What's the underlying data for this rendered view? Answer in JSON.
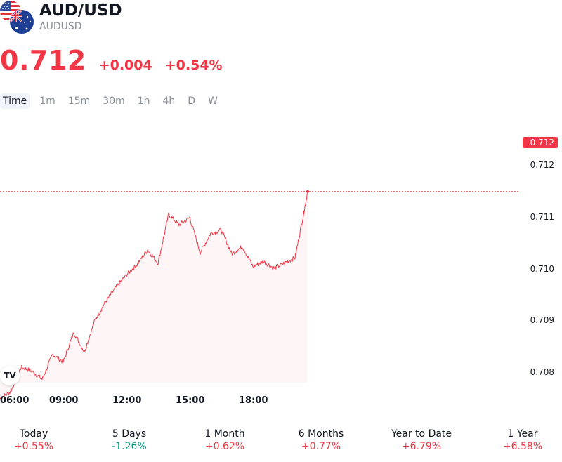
{
  "symbol": {
    "name": "AUD/USD",
    "ticker": "AUDUSD"
  },
  "quote": {
    "price": "0.712",
    "change": "+0.004",
    "change_pct": "+0.54%"
  },
  "colors": {
    "down": "#f23645",
    "up_text": "#089981",
    "line": "#f23645"
  },
  "tabs": [
    {
      "label": "Time",
      "active": true
    },
    {
      "label": "1m",
      "active": false
    },
    {
      "label": "15m",
      "active": false
    },
    {
      "label": "30m",
      "active": false
    },
    {
      "label": "1h",
      "active": false
    },
    {
      "label": "4h",
      "active": false
    },
    {
      "label": "D",
      "active": false
    },
    {
      "label": "W",
      "active": false
    }
  ],
  "chart_data": {
    "type": "line",
    "x_ticks": [
      "06:00",
      "09:00",
      "12:00",
      "15:00",
      "18:00"
    ],
    "y_ticks": [
      "0.712",
      "0.711",
      "0.710",
      "0.709",
      "0.708"
    ],
    "ylim": [
      0.7076,
      0.7134
    ],
    "last_price_label": "0.712",
    "series": [
      {
        "x": [
          6.0,
          6.5,
          7.0,
          7.5,
          8.0,
          8.5,
          9.0,
          9.5,
          10.0,
          10.5,
          11.0,
          11.5,
          12.0,
          12.5,
          13.0,
          13.5,
          14.0,
          14.5,
          15.0,
          15.5,
          16.0,
          16.5,
          17.0,
          17.5,
          18.0,
          18.5,
          19.0,
          19.5,
          20.0,
          20.4,
          20.6
        ],
        "y": [
          70825,
          70838,
          70885,
          70878,
          70862,
          70910,
          70895,
          70952,
          70915,
          70975,
          71010,
          71038,
          71062,
          71082,
          71110,
          71085,
          71178,
          71158,
          71172,
          71105,
          71142,
          71148,
          71102,
          71117,
          71078,
          71088,
          71075,
          71085,
          71095,
          71178,
          71222
        ]
      }
    ]
  },
  "performance": [
    {
      "label": "Today",
      "value": "+0.55%",
      "dir": "pos"
    },
    {
      "label": "5 Days",
      "value": "-1.26%",
      "dir": "neg"
    },
    {
      "label": "1 Month",
      "value": "+0.62%",
      "dir": "pos"
    },
    {
      "label": "6 Months",
      "value": "+0.77%",
      "dir": "pos"
    },
    {
      "label": "Year to Date",
      "value": "+6.79%",
      "dir": "pos"
    },
    {
      "label": "1 Year",
      "value": "+6.58%",
      "dir": "pos"
    }
  ],
  "icons": {
    "us_flag": "us-flag-icon",
    "au_flag": "au-flag-icon",
    "logo": "tradingview-logo"
  }
}
